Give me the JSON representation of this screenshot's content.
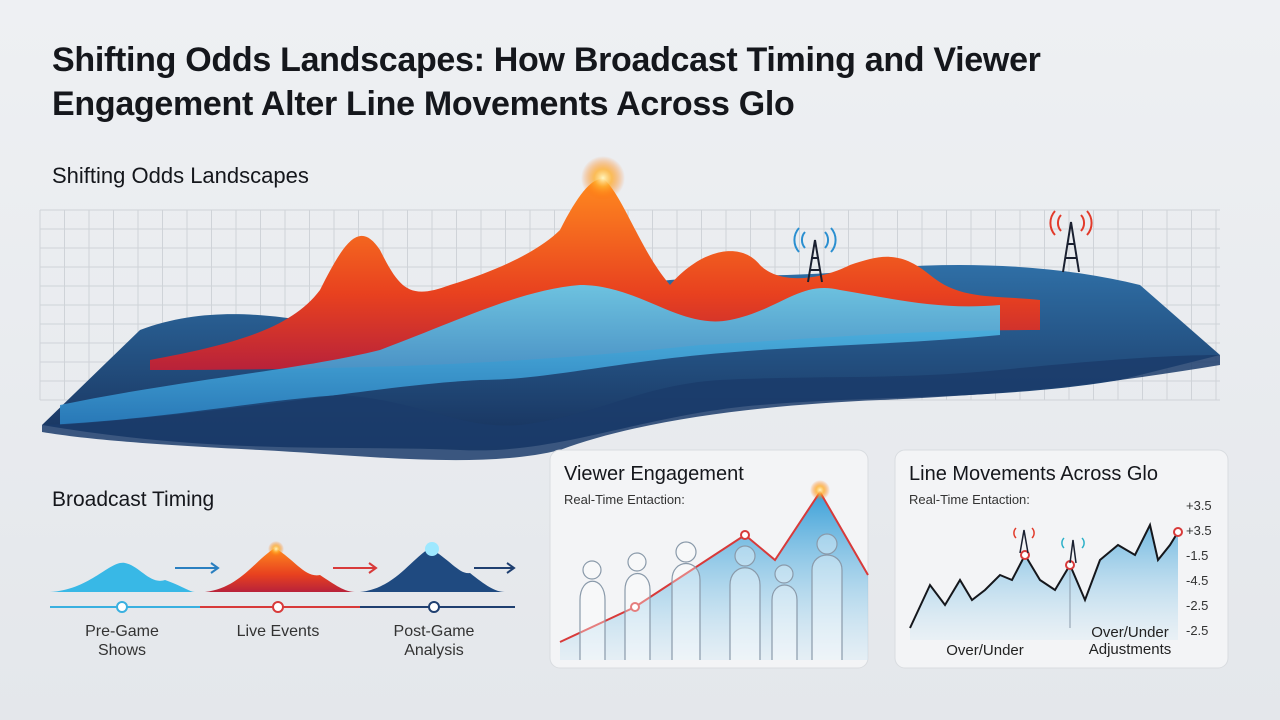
{
  "header": {
    "title": "Shifting Odds Landscapes: How Broadcast Timing and Viewer Engagement Alter Line Movements Across Glo"
  },
  "landscape": {
    "label": "Shifting Odds Landscapes"
  },
  "broadcast_timing": {
    "label": "Broadcast Timing",
    "stages": [
      "Pre-Game Shows",
      "Live Events",
      "Post-Game Analysis"
    ]
  },
  "viewer_panel": {
    "title": "Viewer Engagement",
    "subtitle": "Real-Time Entaction:"
  },
  "line_panel": {
    "title": "Line Movements Across Glo",
    "subtitle": "Real-Time Entaction:",
    "axis_labels": [
      "+3.5",
      "+3.5",
      "-1.5",
      "-4.5",
      "-2.5",
      "-2.5"
    ],
    "bottom_labels": [
      "Over/Under",
      "Over/Under Adjustments"
    ]
  }
}
